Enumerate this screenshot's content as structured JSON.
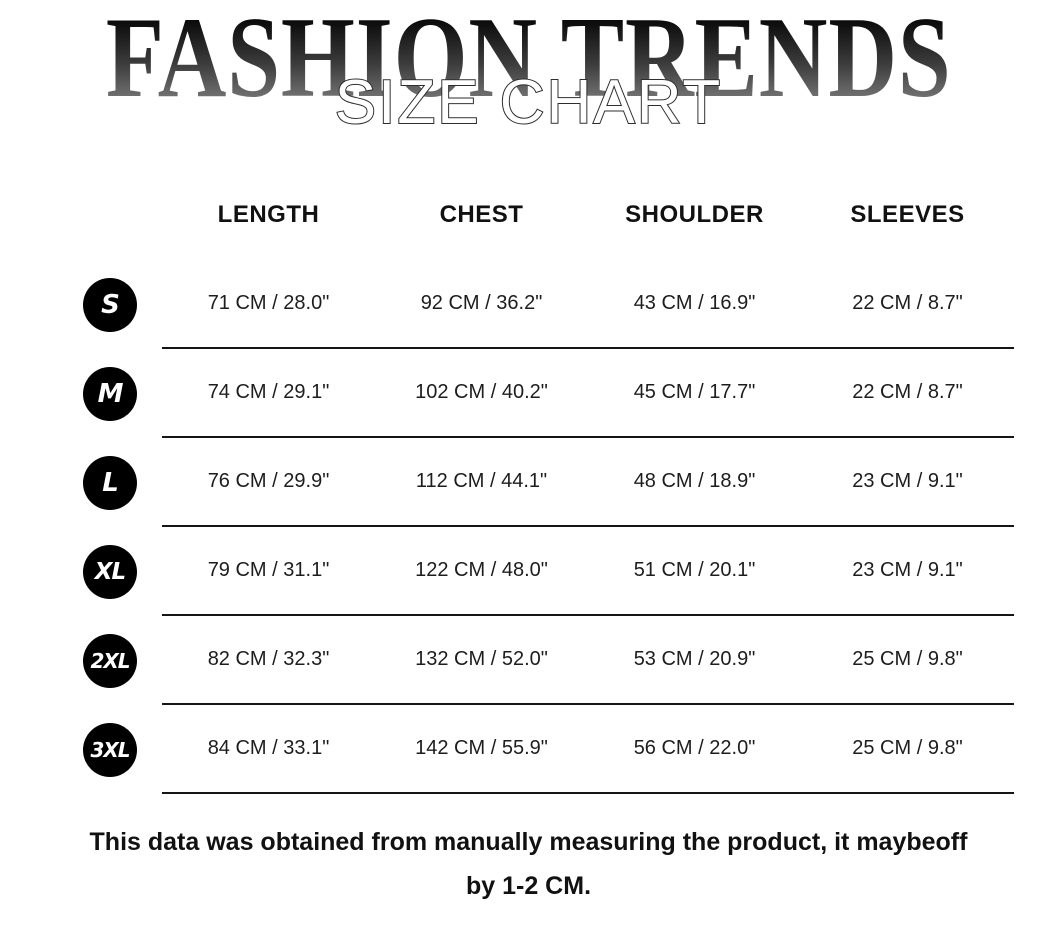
{
  "page": {
    "title": "FASHION TRENDS",
    "subtitle": "SIZE CHART"
  },
  "table": {
    "columns": [
      "LENGTH",
      "CHEST",
      "SHOULDER",
      "SLEEVES"
    ],
    "rows": [
      {
        "size": "S",
        "cells": [
          "71 CM /  28.0\"",
          "92 CM /  36.2\"",
          "43 CM /  16.9\"",
          "22 CM /   8.7\""
        ]
      },
      {
        "size": "M",
        "cells": [
          "74 CM /  29.1\"",
          "102 CM /  40.2\"",
          "45 CM /  17.7\"",
          "22 CM /   8.7\""
        ]
      },
      {
        "size": "L",
        "cells": [
          "76 CM /  29.9\"",
          "112 CM /  44.1\"",
          "48 CM /  18.9\"",
          "23 CM /   9.1\""
        ]
      },
      {
        "size": "XL",
        "cells": [
          "79 CM /   31.1\"",
          "122 CM /  48.0\"",
          "51 CM /  20.1\"",
          "23 CM /   9.1\""
        ]
      },
      {
        "size": "2XL",
        "cells": [
          "82 CM /  32.3\"",
          "132 CM /  52.0\"",
          "53 CM /  20.9\"",
          "25 CM /   9.8\""
        ]
      },
      {
        "size": "3XL",
        "cells": [
          "84 CM /  33.1\"",
          "142 CM /  55.9\"",
          "56 CM /  22.0\"",
          "25 CM /   9.8\""
        ]
      }
    ]
  },
  "footer": {
    "line1": "This data was obtained from manually measuring the product, it maybeoff",
    "line2": "by 1-2 CM."
  },
  "colors": {
    "background": "#ffffff",
    "text": "#1d1d1d",
    "badge": "#000000",
    "badge_text": "#ffffff",
    "divider": "#151515",
    "title_gradient_top": "#070707",
    "title_gradient_bottom": "#8e8e8e",
    "subtitle_fill": "#ffffff",
    "subtitle_outline": "#2e2e2e"
  }
}
